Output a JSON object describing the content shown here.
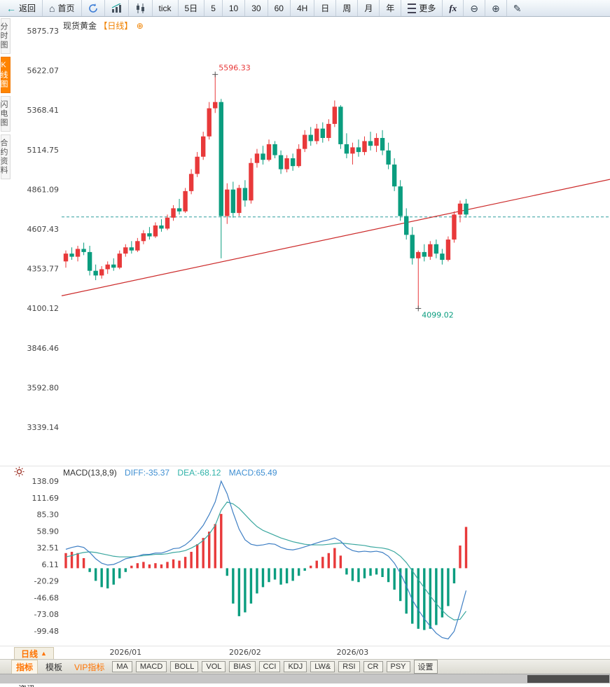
{
  "window": {
    "title_symbol": "现货黄金",
    "title_period": "【日线】"
  },
  "toolbar": {
    "back": "返回",
    "home": "首页",
    "tick": "tick",
    "d5": "5日",
    "m5": "5",
    "m10": "10",
    "m30": "30",
    "m60": "60",
    "h4": "4H",
    "day": "日",
    "week": "周",
    "month": "月",
    "year": "年",
    "more": "更多",
    "fx": "fx"
  },
  "rail": {
    "items": [
      "分时图",
      "K线图",
      "闪电图",
      "合约资料"
    ],
    "active_index": 1
  },
  "macd_header": {
    "name": "MACD(13,8,9)",
    "diff": "DIFF:-35.37",
    "dea": "DEA:-68.12",
    "macd": "MACD:65.49"
  },
  "bottom": {
    "period_button": "日线",
    "period_arrow": "▲",
    "tabs": [
      "指标",
      "模板",
      "VIP指标",
      "MA",
      "MACD",
      "BOLL",
      "VOL",
      "BIAS",
      "CCI",
      "KDJ",
      "LW&",
      "RSI",
      "CR",
      "PSY",
      "设置"
    ],
    "news_label": "资讯"
  },
  "colors": {
    "accent_orange": "#ff7300",
    "bull_red": "#e8393a",
    "bear_green": "#0a9d7f",
    "diff_blue": "#3f7fc4",
    "dea_teal": "#3aa79f",
    "trend_red": "#cc2a2a",
    "dashed_teal": "#2e9e9e",
    "axis_text": "#444"
  },
  "chart_data": {
    "type": "candlestick",
    "title": "现货黄金【日线】",
    "symbol": "现货黄金",
    "period": "日线",
    "legend_position": "none",
    "grid": false,
    "price_axis": [
      5875.73,
      5622.07,
      5368.41,
      5114.75,
      4861.09,
      4607.43,
      4353.77,
      4100.12,
      3846.46,
      3592.8,
      3339.14
    ],
    "candles": [
      [
        4400,
        4470,
        4360,
        4450
      ],
      [
        4450,
        4490,
        4410,
        4430
      ],
      [
        4430,
        4500,
        4400,
        4480
      ],
      [
        4480,
        4520,
        4440,
        4460
      ],
      [
        4460,
        4500,
        4310,
        4340
      ],
      [
        4340,
        4380,
        4280,
        4310
      ],
      [
        4310,
        4370,
        4290,
        4350
      ],
      [
        4350,
        4400,
        4320,
        4380
      ],
      [
        4380,
        4420,
        4340,
        4360
      ],
      [
        4360,
        4470,
        4350,
        4450
      ],
      [
        4450,
        4510,
        4430,
        4490
      ],
      [
        4490,
        4530,
        4450,
        4470
      ],
      [
        4470,
        4550,
        4460,
        4530
      ],
      [
        4530,
        4600,
        4510,
        4580
      ],
      [
        4580,
        4620,
        4540,
        4560
      ],
      [
        4560,
        4650,
        4550,
        4630
      ],
      [
        4630,
        4670,
        4590,
        4610
      ],
      [
        4610,
        4700,
        4600,
        4680
      ],
      [
        4680,
        4760,
        4660,
        4740
      ],
      [
        4740,
        4800,
        4700,
        4720
      ],
      [
        4720,
        4870,
        4710,
        4850
      ],
      [
        4850,
        4990,
        4830,
        4960
      ],
      [
        4960,
        5100,
        4940,
        5070
      ],
      [
        5070,
        5230,
        5050,
        5200
      ],
      [
        5200,
        5420,
        5180,
        5380
      ],
      [
        5380,
        5596.33,
        5350,
        5420
      ],
      [
        5420,
        5440,
        4420,
        4690
      ],
      [
        4690,
        4900,
        4640,
        4860
      ],
      [
        4860,
        4910,
        4680,
        4710
      ],
      [
        4710,
        4890,
        4690,
        4870
      ],
      [
        4870,
        4920,
        4750,
        4790
      ],
      [
        4790,
        5060,
        4770,
        5030
      ],
      [
        5030,
        5120,
        5000,
        5090
      ],
      [
        5090,
        5140,
        5020,
        5050
      ],
      [
        5050,
        5180,
        5040,
        5150
      ],
      [
        5150,
        5170,
        5060,
        5080
      ],
      [
        5080,
        5110,
        4960,
        4990
      ],
      [
        4990,
        5080,
        4970,
        5060
      ],
      [
        5060,
        5090,
        4980,
        5010
      ],
      [
        5010,
        5150,
        5000,
        5120
      ],
      [
        5120,
        5240,
        5100,
        5210
      ],
      [
        5210,
        5260,
        5140,
        5170
      ],
      [
        5170,
        5280,
        5150,
        5250
      ],
      [
        5250,
        5290,
        5160,
        5190
      ],
      [
        5190,
        5310,
        5170,
        5280
      ],
      [
        5280,
        5430,
        5260,
        5390
      ],
      [
        5390,
        5400,
        5120,
        5150
      ],
      [
        5150,
        5220,
        5060,
        5090
      ],
      [
        5090,
        5160,
        5020,
        5130
      ],
      [
        5130,
        5180,
        5070,
        5100
      ],
      [
        5100,
        5200,
        5080,
        5170
      ],
      [
        5170,
        5230,
        5110,
        5140
      ],
      [
        5140,
        5220,
        5100,
        5190
      ],
      [
        5190,
        5240,
        5080,
        5110
      ],
      [
        5110,
        5160,
        4990,
        5020
      ],
      [
        5020,
        5060,
        4850,
        4880
      ],
      [
        4880,
        4920,
        4660,
        4690
      ],
      [
        4690,
        4740,
        4540,
        4570
      ],
      [
        4570,
        4620,
        4380,
        4420
      ],
      [
        4420,
        4470,
        4099.02,
        4460
      ],
      [
        4460,
        4510,
        4400,
        4430
      ],
      [
        4430,
        4530,
        4410,
        4510
      ],
      [
        4510,
        4540,
        4420,
        4450
      ],
      [
        4450,
        4480,
        4380,
        4410
      ],
      [
        4410,
        4560,
        4400,
        4540
      ],
      [
        4540,
        4720,
        4520,
        4700
      ],
      [
        4700,
        4790,
        4650,
        4770
      ],
      [
        4770,
        4800,
        4680,
        4700
      ]
    ],
    "annotations": [
      {
        "kind": "high",
        "index": 25,
        "text": "5596.33"
      },
      {
        "kind": "low",
        "index": 59,
        "text": "4099.02"
      }
    ],
    "dashed_line_price": 4685,
    "trend_line": {
      "price_start": 4180,
      "price_end": 4925
    },
    "x_labels": [
      {
        "text": "2026/01",
        "index": 10
      },
      {
        "text": "2026/02",
        "index": 30
      },
      {
        "text": "2026/03",
        "index": 48
      }
    ],
    "macd": {
      "name": "MACD(13,8,9)",
      "diff_last": -35.37,
      "dea_last": -68.12,
      "macd_last": 65.49,
      "axis": [
        138.09,
        111.69,
        85.3,
        58.9,
        32.51,
        6.11,
        -20.29,
        -46.68,
        -73.08,
        -99.48
      ],
      "histogram": [
        24,
        26,
        24,
        16,
        -6,
        -20,
        -30,
        -32,
        -26,
        -16,
        -6,
        4,
        8,
        10,
        6,
        8,
        6,
        10,
        14,
        12,
        18,
        26,
        38,
        48,
        58,
        70,
        86,
        -12,
        -56,
        -76,
        -70,
        -56,
        -40,
        -30,
        -22,
        -18,
        -26,
        -24,
        -20,
        -12,
        -4,
        4,
        12,
        18,
        24,
        32,
        20,
        -10,
        -20,
        -22,
        -16,
        -12,
        -10,
        -14,
        -22,
        -34,
        -52,
        -72,
        -88,
        -96,
        -98,
        -96,
        -90,
        -78,
        -60,
        -24,
        36,
        65.49
      ],
      "diff": [
        30,
        33,
        35,
        33,
        25,
        15,
        8,
        5,
        6,
        10,
        15,
        17,
        19,
        22,
        22,
        24,
        24,
        27,
        31,
        32,
        37,
        45,
        56,
        68,
        85,
        105,
        138,
        118,
        88,
        62,
        45,
        38,
        36,
        37,
        39,
        38,
        33,
        30,
        29,
        31,
        34,
        37,
        40,
        43,
        45,
        48,
        43,
        33,
        28,
        26,
        27,
        26,
        27,
        25,
        19,
        8,
        -8,
        -28,
        -50,
        -66,
        -80,
        -92,
        -103,
        -110,
        -112,
        -100,
        -70,
        -35.37
      ],
      "dea": [
        18,
        20,
        23,
        25,
        26,
        25,
        23,
        21,
        19,
        18,
        18,
        18,
        19,
        20,
        21,
        22,
        22,
        23,
        25,
        26,
        28,
        32,
        37,
        44,
        54,
        68,
        92,
        105,
        102,
        95,
        85,
        75,
        66,
        60,
        56,
        52,
        48,
        45,
        42,
        40,
        38,
        37,
        37,
        37,
        38,
        39,
        40,
        39,
        38,
        37,
        36,
        34,
        33,
        32,
        30,
        26,
        19,
        9,
        -4,
        -18,
        -31,
        -44,
        -56,
        -67,
        -76,
        -82,
        -81,
        -68.12
      ]
    }
  }
}
